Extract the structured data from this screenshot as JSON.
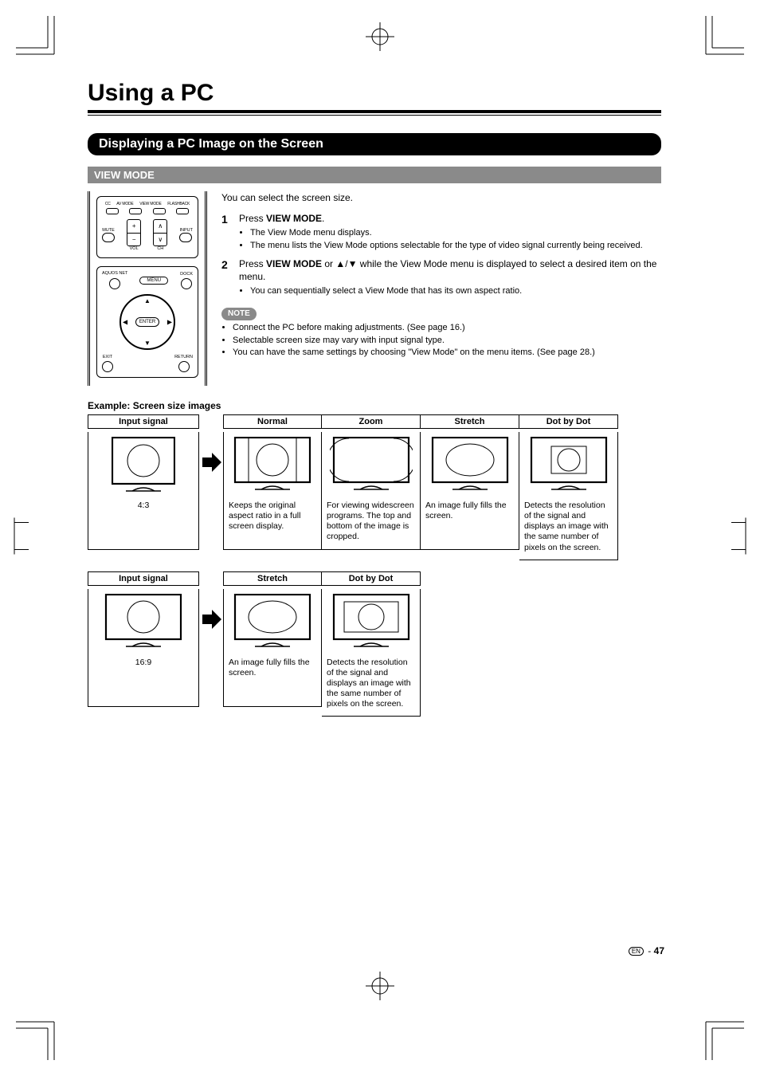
{
  "title": "Using a PC",
  "section_heading": "Displaying a PC Image on the Screen",
  "subheading": "VIEW MODE",
  "remote": {
    "top_labels": [
      "CC",
      "AV MODE",
      "VIEW MODE",
      "FLASHBACK"
    ],
    "mute": "MUTE",
    "vol": "VOL",
    "ch": "CH",
    "input": "INPUT",
    "aquos_net": "AQUOS NET",
    "menu": "MENU",
    "dock": "DOCK",
    "enter": "ENTER",
    "exit": "EXIT",
    "return": "RETURN"
  },
  "intro": "You can select the screen size.",
  "steps": [
    {
      "num": "1",
      "main_pre": "Press ",
      "main_bold": "VIEW MODE",
      "main_post": ".",
      "bullets": [
        "The View Mode menu displays.",
        "The menu lists the View Mode options selectable for the type of video signal currently being received."
      ]
    },
    {
      "num": "2",
      "main_pre": "Press ",
      "main_bold": "VIEW MODE",
      "main_mid": " or ▲/▼ while the View Mode menu is displayed to select a desired item on the menu.",
      "bullets": [
        "You can sequentially select a View Mode that has its own aspect ratio."
      ]
    }
  ],
  "note_label": "NOTE",
  "notes": [
    "Connect the PC before making adjustments. (See page 16.)",
    "Selectable screen size may vary with input signal type.",
    "You can have the same settings by choosing \"View Mode\" on the menu items. (See page 28.)"
  ],
  "example_title": "Example: Screen size images",
  "row1": {
    "input": {
      "head": "Input signal",
      "label": "4:3",
      "aspect": "4:3"
    },
    "cols": [
      {
        "head": "Normal",
        "desc": "Keeps the original aspect ratio in a full screen display.",
        "aspect": "4:3-in-16:9"
      },
      {
        "head": "Zoom",
        "desc": "For viewing widescreen programs. The top and bottom of the image is cropped.",
        "aspect": "zoom"
      },
      {
        "head": "Stretch",
        "desc": "An image fully fills the screen.",
        "aspect": "stretch"
      },
      {
        "head": "Dot by Dot",
        "desc": "Detects the resolution of the signal and displays an image with the same number of pixels on the screen.",
        "aspect": "dotbydot-4:3"
      }
    ]
  },
  "row2": {
    "input": {
      "head": "Input signal",
      "label": "16:9",
      "aspect": "16:9"
    },
    "cols": [
      {
        "head": "Stretch",
        "desc": "An image fully fills the screen.",
        "aspect": "stretch"
      },
      {
        "head": "Dot by Dot",
        "desc": "Detects the resolution of the signal and displays an image with the same number of pixels on the screen.",
        "aspect": "dotbydot-16:9"
      }
    ]
  },
  "page_marker": {
    "lang": "EN",
    "sep": " - ",
    "num": "47"
  },
  "colors": {
    "bar_bg": "#000000",
    "sub_bg": "#8a8a8a",
    "text": "#000000"
  }
}
